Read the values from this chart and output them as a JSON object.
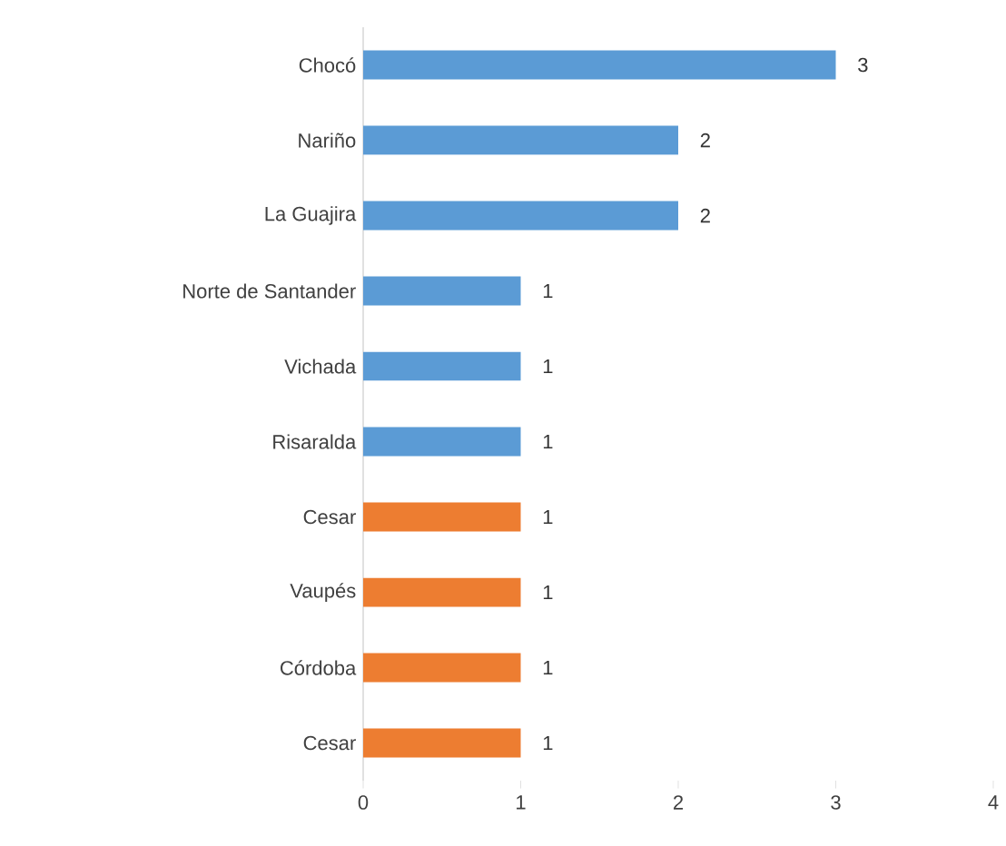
{
  "chart_data": {
    "type": "bar",
    "orientation": "horizontal",
    "categories": [
      "Chocó",
      "Nariño",
      "La Guajira",
      "Norte de Santander",
      "Vichada",
      "Risaralda",
      "Cesar",
      "Vaupés",
      "Córdoba",
      "Cesar"
    ],
    "values": [
      3,
      2,
      2,
      1,
      1,
      1,
      1,
      1,
      1,
      1
    ],
    "colors": [
      "#5b9bd5",
      "#5b9bd5",
      "#5b9bd5",
      "#5b9bd5",
      "#5b9bd5",
      "#5b9bd5",
      "#ed7d31",
      "#ed7d31",
      "#ed7d31",
      "#ed7d31"
    ],
    "xlim": [
      0,
      4
    ],
    "xticks": [
      0,
      1,
      2,
      3,
      4
    ],
    "data_labels": true
  }
}
